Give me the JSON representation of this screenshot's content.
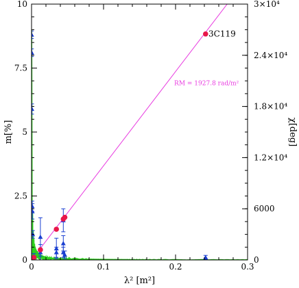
{
  "chart_data": {
    "type": "scatter",
    "xlabel": "λ² [m²]",
    "ylabel_left": "m[%]",
    "ylabel_right": "χ[deg]",
    "xlim": [
      0,
      0.3
    ],
    "ylim_left": [
      0,
      10
    ],
    "ylim_right": [
      0,
      30000
    ],
    "x_ticks": [
      {
        "v": 0,
        "label": "0"
      },
      {
        "v": 0.1,
        "label": "0.1"
      },
      {
        "v": 0.2,
        "label": "0.2"
      },
      {
        "v": 0.3,
        "label": "0.3"
      }
    ],
    "y_left_ticks": [
      {
        "v": 0,
        "label": "0"
      },
      {
        "v": 2.5,
        "label": "2.5"
      },
      {
        "v": 5,
        "label": "5"
      },
      {
        "v": 7.5,
        "label": "7.5"
      },
      {
        "v": 10,
        "label": "10"
      }
    ],
    "y_right_ticks": [
      {
        "v": 0,
        "label": "0"
      },
      {
        "v": 6000,
        "label": "6000"
      },
      {
        "v": 12000,
        "label": "1.2×10⁴"
      },
      {
        "v": 18000,
        "label": "1.8×10⁴"
      },
      {
        "v": 24000,
        "label": "2.4×10⁴"
      },
      {
        "v": 30000,
        "label": "3×10⁴"
      }
    ],
    "series": [
      {
        "kind": "polarization_angle",
        "axis": "right",
        "color": "#e8174a",
        "marker": "circle",
        "points": [
          {
            "x": 0.0009,
            "y": 0
          },
          {
            "x": 0.0017,
            "y": 150
          },
          {
            "x": 0.0033,
            "y": 300
          },
          {
            "x": 0.0123,
            "y": 1200
          },
          {
            "x": 0.0345,
            "y": 3600
          },
          {
            "x": 0.0441,
            "y": 4800
          },
          {
            "x": 0.0462,
            "y": 5000
          },
          {
            "x": 0.2417,
            "y": 26500
          }
        ]
      },
      {
        "kind": "fractional_polarization",
        "axis": "left",
        "color": "#1a3fd1",
        "marker": "triangle",
        "points": [
          {
            "x": 0.0002,
            "y": 8.8,
            "err": 0.15
          },
          {
            "x": 0.0003,
            "y": 8.1,
            "err": 0.15
          },
          {
            "x": 0.0005,
            "y": 5.9,
            "err": 0.2
          },
          {
            "x": 0.0009,
            "y": 2.1,
            "err": 0.2
          },
          {
            "x": 0.0011,
            "y": 1.9,
            "err": 0.3
          },
          {
            "x": 0.0017,
            "y": 1.0,
            "err": 0.15
          },
          {
            "x": 0.0033,
            "y": 0.15,
            "err": 0.1
          },
          {
            "x": 0.0123,
            "y": 0.9,
            "err": 0.75
          },
          {
            "x": 0.0123,
            "y": 0.3,
            "err": 0.3
          },
          {
            "x": 0.0345,
            "y": 0.45,
            "err": 0.4
          },
          {
            "x": 0.0345,
            "y": 0.3,
            "err": 0.2
          },
          {
            "x": 0.0441,
            "y": 1.55,
            "err": 0.45
          },
          {
            "x": 0.0441,
            "y": 0.65,
            "err": 0.3
          },
          {
            "x": 0.0441,
            "y": 0.3,
            "err": 0.2
          },
          {
            "x": 0.0462,
            "y": 0.2,
            "err": 0.15
          },
          {
            "x": 0.2417,
            "y": 0.1,
            "err": 0.08
          }
        ]
      }
    ],
    "fits": [
      {
        "kind": "rm_fit_line",
        "axis": "right",
        "color": "#e83ae0",
        "slope_deg_per_m2": 110449,
        "intercept": 0,
        "x_range": [
          0,
          0.288
        ]
      },
      {
        "kind": "depolarization_model",
        "axis": "left",
        "color": "#2fcf1f",
        "model": "m0 * |sinc(2*dRM*lambda2)|",
        "m0": 9.0,
        "drm_rad_per_m2": 1700
      }
    ],
    "annotations": [
      {
        "text": "3C119",
        "x": 0.215,
        "y_right": 26500,
        "color": "#000000"
      },
      {
        "text": "RM = 1927.8 rad/m²",
        "x": 0.181,
        "y_right": 20400,
        "color": "#e83ae0"
      }
    ]
  }
}
